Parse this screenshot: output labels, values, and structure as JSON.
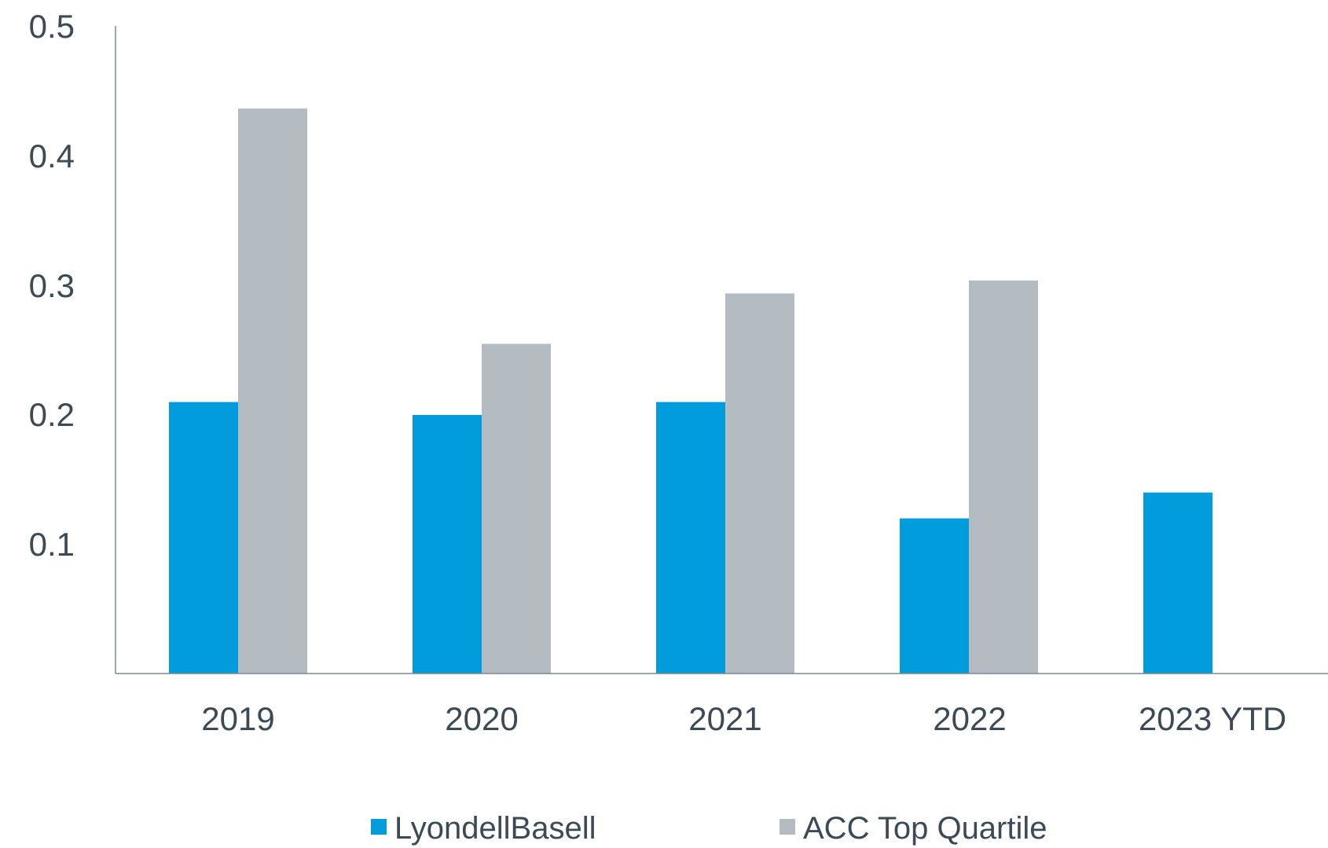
{
  "chart_data": {
    "type": "bar",
    "categories": [
      "2019",
      "2020",
      "2021",
      "2022",
      "2023 YTD"
    ],
    "series": [
      {
        "name": "LyondellBasell",
        "color": "#009cdc",
        "values": [
          0.21,
          0.2,
          0.21,
          0.12,
          0.14
        ]
      },
      {
        "name": "ACC Top Quartile",
        "color": "#b4bbc1",
        "values": [
          0.437,
          0.255,
          0.294,
          0.304,
          null
        ]
      }
    ],
    "y_ticks": [
      "0.5",
      "0.4",
      "0.3",
      "0.2",
      "0.1"
    ],
    "ylim": [
      0,
      0.5
    ],
    "title": "",
    "xlabel": "",
    "ylabel": "",
    "grid": false,
    "legend_position": "bottom-center"
  }
}
